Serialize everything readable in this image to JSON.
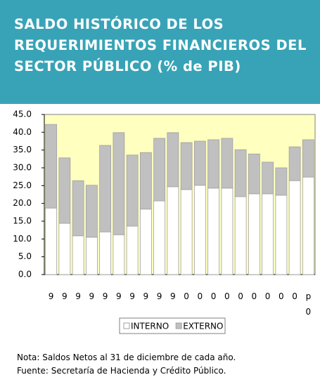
{
  "chart_data": {
    "type": "stacked_bar",
    "title": "SALDO HISTÓRICO DE LOS REQUERIMIENTOS FINANCIEROS DEL SECTOR PÚBLICO (% de PIB)",
    "categories": [
      "9",
      "9",
      "9",
      "9",
      "9",
      "9",
      "9",
      "9",
      "9",
      "9",
      "0",
      "0",
      "0",
      "0",
      "0",
      "0",
      "0",
      "0",
      "0",
      "p 0"
    ],
    "series": [
      {
        "name": "INTERNO",
        "color": "#ffffff",
        "values": [
          18.7,
          14.4,
          10.9,
          10.5,
          12.0,
          11.2,
          13.6,
          18.4,
          20.7,
          24.7,
          23.9,
          25.1,
          24.3,
          24.3,
          21.9,
          22.7,
          22.7,
          22.3,
          26.4,
          27.4
        ]
      },
      {
        "name": "EXTERNO",
        "color": "#c0c0c0",
        "values": [
          23.5,
          18.4,
          15.5,
          14.6,
          24.3,
          28.7,
          20.0,
          15.9,
          17.6,
          15.2,
          13.2,
          12.4,
          13.6,
          14.0,
          13.2,
          11.2,
          8.9,
          7.7,
          9.5,
          10.5
        ]
      }
    ],
    "ylim": [
      0,
      45
    ],
    "yticks": [
      {
        "value": 0,
        "label": "0.0"
      },
      {
        "value": 5,
        "label": "5.0"
      },
      {
        "value": 10,
        "label": "10.0"
      },
      {
        "value": 15,
        "label": "15.0"
      },
      {
        "value": 20,
        "label": "20.0"
      },
      {
        "value": 25,
        "label": "25.0"
      },
      {
        "value": 30,
        "label": "30.0"
      },
      {
        "value": 35,
        "label": "35.0"
      },
      {
        "value": 40,
        "label": "40.0"
      },
      {
        "value": 45,
        "label": "45.0"
      }
    ],
    "plot_background": "#ffffc0",
    "notes": [
      "Nota: Saldos Netos al 31 de diciembre de cada año.",
      "Fuente: Secretaría de Hacienda y Crédito Público."
    ]
  }
}
